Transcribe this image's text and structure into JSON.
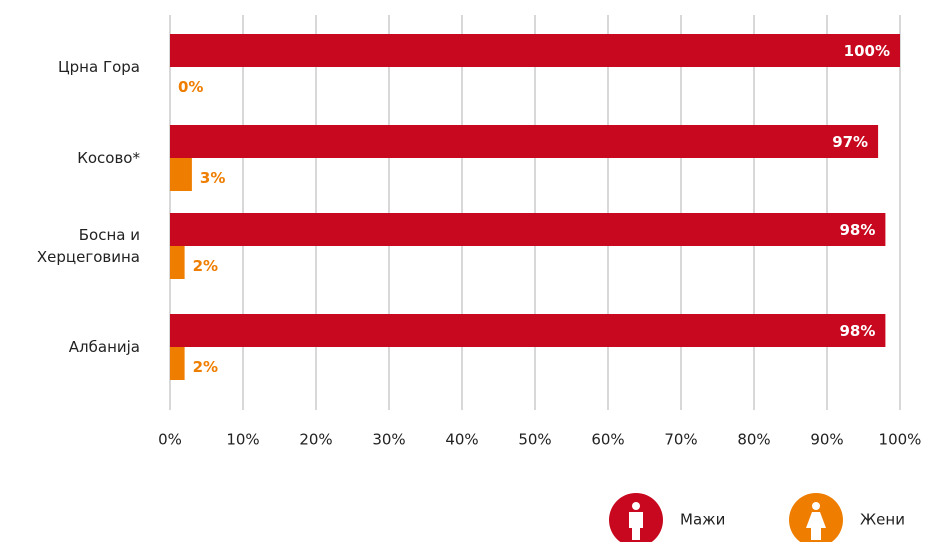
{
  "chart_data": {
    "type": "hbar",
    "categories": [
      "Црна Гора",
      "Косово*",
      "Босна и Херцеговина",
      "Албанија"
    ],
    "series": [
      {
        "name": "Мажи",
        "color": "#c8081e",
        "values": [
          100,
          97,
          98,
          98
        ],
        "value_labels": [
          "100%",
          "97%",
          "98%",
          "98%"
        ]
      },
      {
        "name": "Жени",
        "color": "#ef7d00",
        "values": [
          0,
          3,
          2,
          2
        ],
        "value_labels": [
          "0%",
          "3%",
          "2%",
          "2%"
        ]
      }
    ],
    "xlim": [
      0,
      100
    ],
    "xticks": [
      {
        "value": 0,
        "label": "0%"
      },
      {
        "value": 10,
        "label": "10%"
      },
      {
        "value": 20,
        "label": "20%"
      },
      {
        "value": 30,
        "label": "30%"
      },
      {
        "value": 40,
        "label": "40%"
      },
      {
        "value": 50,
        "label": "50%"
      },
      {
        "value": 60,
        "label": "60%"
      },
      {
        "value": 70,
        "label": "70%"
      },
      {
        "value": 80,
        "label": "80%"
      },
      {
        "value": 90,
        "label": "90%"
      },
      {
        "value": 100,
        "label": "100%"
      }
    ],
    "grid": true,
    "legend": "bottom-right"
  }
}
